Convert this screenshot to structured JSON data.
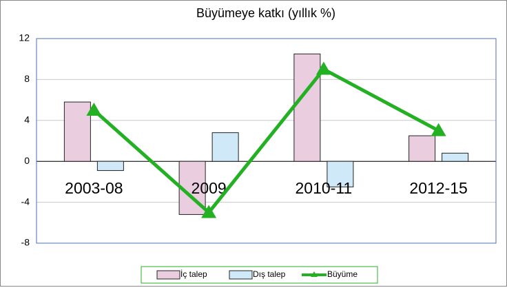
{
  "chart_data": {
    "type": "bar",
    "title": "Büyümeye katkı (yıllık %)",
    "categories": [
      "2003-08",
      "2009",
      "2010-11",
      "2012-15"
    ],
    "series": [
      {
        "name": "İç talep",
        "color": "#ebcde0",
        "values": [
          5.8,
          -5.2,
          10.5,
          2.5
        ]
      },
      {
        "name": "Dış talep",
        "color": "#cfe9f9",
        "values": [
          -0.9,
          2.8,
          -2.5,
          0.8
        ]
      },
      {
        "name": "Büyüme",
        "color": "#23b023",
        "type": "line",
        "values": [
          5,
          -5,
          9,
          3
        ]
      }
    ],
    "ylim": [
      -8,
      12
    ],
    "yticks": [
      -8,
      -4,
      0,
      4,
      8,
      12
    ],
    "grid": true,
    "legend": "bottom"
  }
}
